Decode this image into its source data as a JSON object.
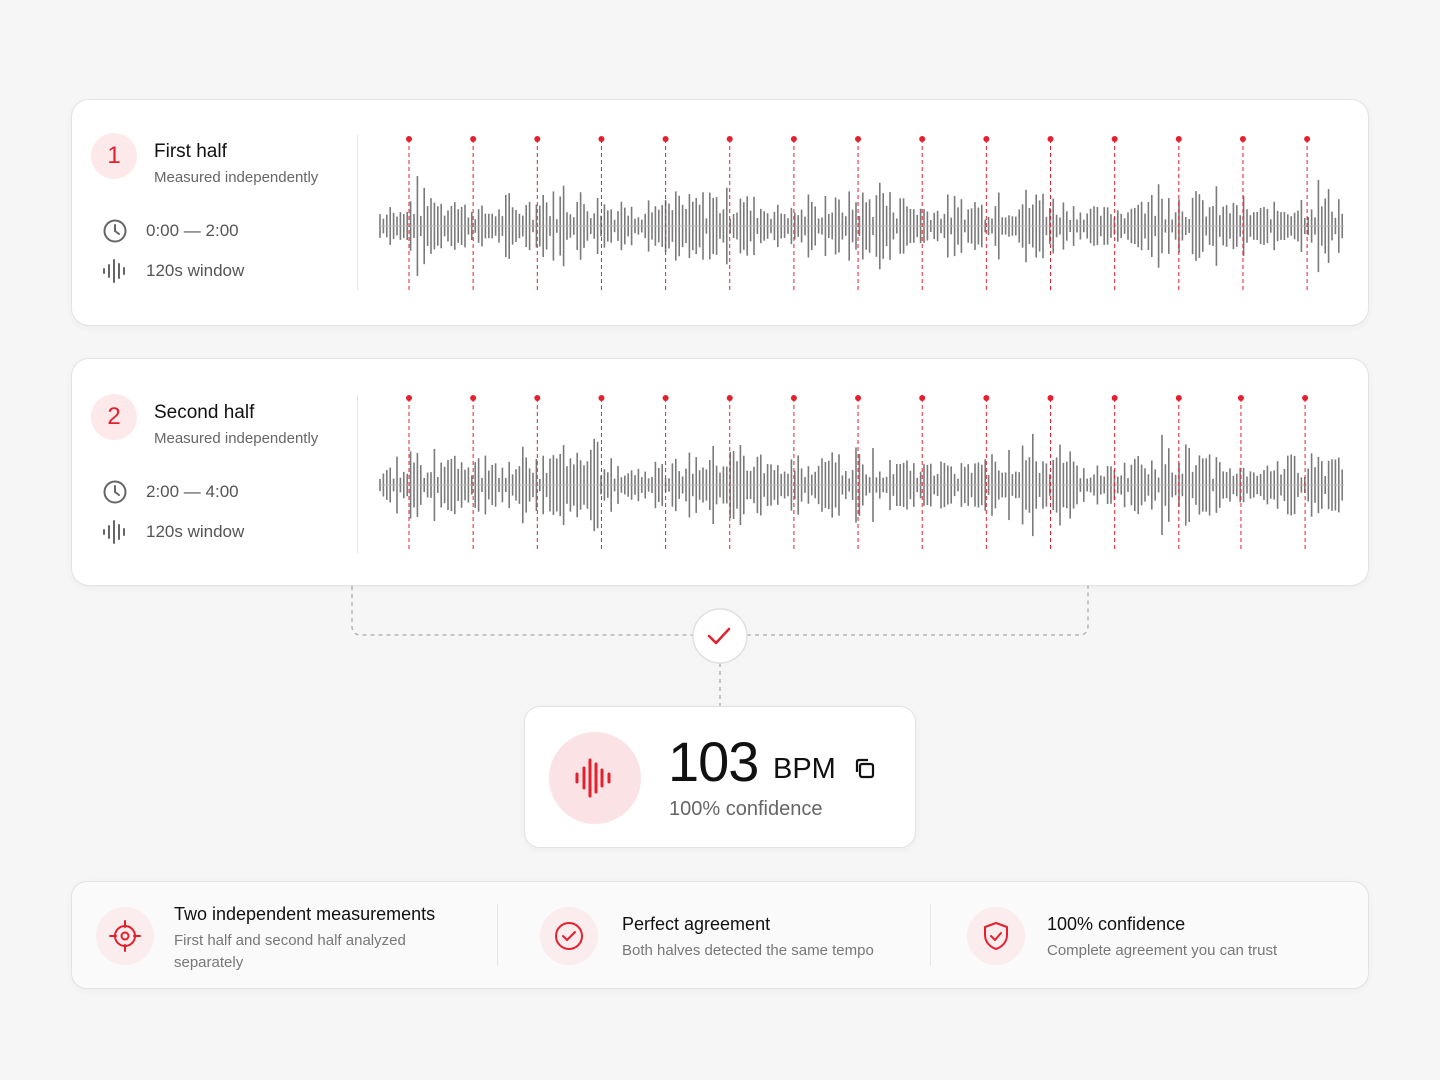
{
  "sections": [
    {
      "number": "1",
      "title": "First half",
      "subtitle": "Measured independently",
      "time": "0:00 — 2:00",
      "window": "120s window"
    },
    {
      "number": "2",
      "title": "Second half",
      "subtitle": "Measured independently",
      "time": "2:00 — 4:00",
      "window": "120s window"
    }
  ],
  "result": {
    "value": "103",
    "unit": "BPM",
    "confidence": "100% confidence"
  },
  "features": [
    {
      "title": "Two independent measurements",
      "description": "First half and second half analyzed separately"
    },
    {
      "title": "Perfect agreement",
      "description": "Both halves detected the same tempo"
    },
    {
      "title": "100% confidence",
      "description": "Complete agreement you can trust"
    }
  ]
}
